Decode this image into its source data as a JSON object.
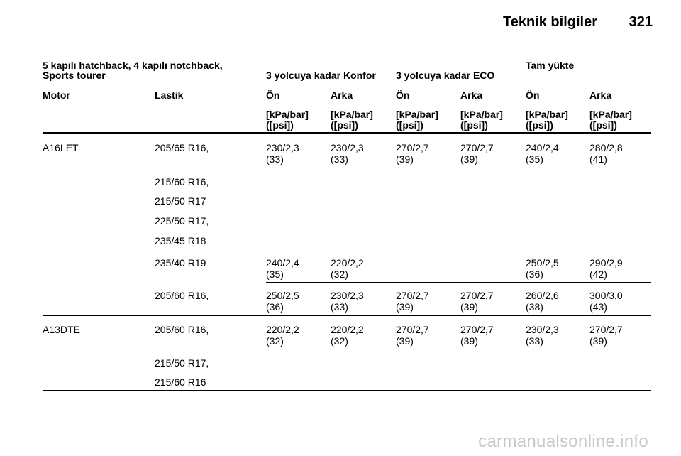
{
  "header": {
    "title": "Teknik bilgiler",
    "page_number": "321"
  },
  "table": {
    "vehicle_line1": "5 kapılı hatchback, 4 kapılı notchback,",
    "vehicle_line2": "Sports tourer",
    "group_konfor": "3 yolcuya kadar Konfor",
    "group_eco": "3 yolcuya kadar ECO",
    "group_full": "Tam yükte",
    "col_motor": "Motor",
    "col_lastik": "Lastik",
    "col_on": "Ön",
    "col_arka": "Arka",
    "unit_line1": "[kPa/bar]",
    "unit_line2": "([psi])",
    "engines": [
      "A16LET",
      "A13DTE"
    ],
    "tires": [
      "205/65 R16,",
      "215/60 R16,",
      "215/50 R17",
      "225/50 R17,",
      "235/45 R18",
      "235/40 R19",
      "205/60 R16,",
      "205/60 R16,",
      "215/50 R17,",
      "215/60 R16"
    ],
    "rows": [
      {
        "kpa": [
          "230/2,3",
          "230/2,3",
          "270/2,7",
          "270/2,7",
          "240/2,4",
          "280/2,8"
        ],
        "psi": [
          "(33)",
          "(33)",
          "(39)",
          "(39)",
          "(35)",
          "(41)"
        ]
      },
      {
        "kpa": [
          "240/2,4",
          "220/2,2",
          "–",
          "–",
          "250/2,5",
          "290/2,9"
        ],
        "psi": [
          "(35)",
          "(32)",
          "",
          "",
          "(36)",
          "(42)"
        ]
      },
      {
        "kpa": [
          "250/2,5",
          "230/2,3",
          "270/2,7",
          "270/2,7",
          "260/2,6",
          "300/3,0"
        ],
        "psi": [
          "(36)",
          "(33)",
          "(39)",
          "(39)",
          "(38)",
          "(43)"
        ]
      },
      {
        "kpa": [
          "220/2,2",
          "220/2,2",
          "270/2,7",
          "270/2,7",
          "230/2,3",
          "270/2,7"
        ],
        "psi": [
          "(32)",
          "(32)",
          "(39)",
          "(39)",
          "(33)",
          "(39)"
        ]
      }
    ]
  },
  "watermark": "carmanualsonline.info"
}
